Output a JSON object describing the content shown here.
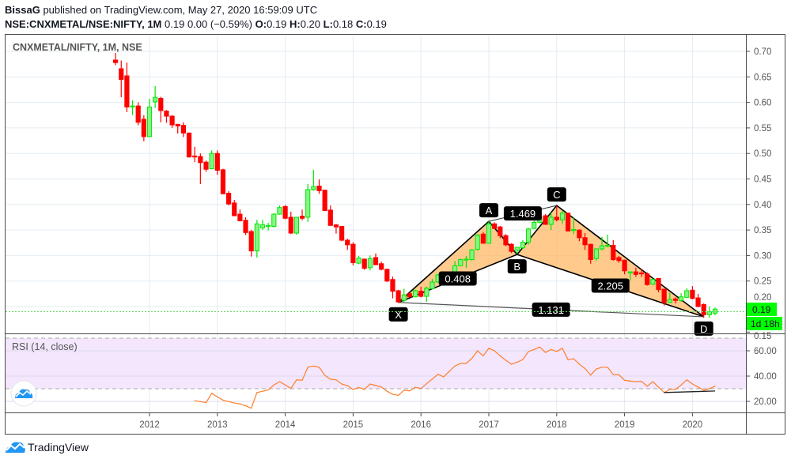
{
  "header": {
    "author": "BissaG",
    "published": "published on TradingView.com, May 27, 2020 16:59:09 UTC",
    "symbol": "NSE:CNXMETAL/NSE:NIFTY, 1M",
    "last": "0.19",
    "change": "0.00 (−0.59%)",
    "o_label": "O:",
    "o": "0.19",
    "h_label": "H:",
    "h": "0.20",
    "l_label": "L:",
    "l": "0.18",
    "c_label": "C:",
    "c": "0.19"
  },
  "pane_title": "CNXMETAL/NIFTY, 1M, NSE",
  "rsi_title": "RSI (14, close)",
  "current_price_label": "0.19",
  "countdown_label": "1d 18h",
  "brand": "TradingView",
  "colors": {
    "up": "#00e600",
    "up_fill": "#86f586",
    "down": "#ff0000",
    "pattern": "#ffb865",
    "rsi": "#ff7f2a",
    "rsi_band": "#f3e6fd",
    "current": "#00ff00"
  },
  "chart_data": [
    {
      "type": "candlestick",
      "title": "CNXMETAL/NIFTY, 1M, NSE",
      "ylim": [
        0.15,
        0.72
      ],
      "y_ticks": [
        "0.70",
        "0.65",
        "0.60",
        "0.55",
        "0.50",
        "0.45",
        "0.40",
        "0.35",
        "0.30",
        "0.25",
        "0.20",
        "0.15"
      ],
      "x_ticks": [
        "2012",
        "2013",
        "2014",
        "2015",
        "2016",
        "2017",
        "2018",
        "2019",
        "2020"
      ],
      "start": "2011-07",
      "ohlc": [
        [
          0.683,
          0.697,
          0.673,
          0.678
        ],
        [
          0.666,
          0.682,
          0.61,
          0.645
        ],
        [
          0.652,
          0.678,
          0.581,
          0.591
        ],
        [
          0.591,
          0.604,
          0.575,
          0.593
        ],
        [
          0.593,
          0.6,
          0.555,
          0.561
        ],
        [
          0.567,
          0.575,
          0.524,
          0.533
        ],
        [
          0.533,
          0.607,
          0.532,
          0.591
        ],
        [
          0.601,
          0.632,
          0.589,
          0.61
        ],
        [
          0.608,
          0.611,
          0.561,
          0.584
        ],
        [
          0.583,
          0.585,
          0.56,
          0.573
        ],
        [
          0.573,
          0.575,
          0.55,
          0.556
        ],
        [
          0.557,
          0.558,
          0.539,
          0.554
        ],
        [
          0.555,
          0.561,
          0.532,
          0.54
        ],
        [
          0.54,
          0.541,
          0.492,
          0.493
        ],
        [
          0.495,
          0.513,
          0.483,
          0.493
        ],
        [
          0.494,
          0.5,
          0.44,
          0.482
        ],
        [
          0.483,
          0.486,
          0.464,
          0.469
        ],
        [
          0.47,
          0.506,
          0.469,
          0.5
        ],
        [
          0.5,
          0.506,
          0.458,
          0.467
        ],
        [
          0.468,
          0.47,
          0.42,
          0.421
        ],
        [
          0.422,
          0.426,
          0.398,
          0.401
        ],
        [
          0.403,
          0.409,
          0.377,
          0.378
        ],
        [
          0.381,
          0.39,
          0.367,
          0.368
        ],
        [
          0.369,
          0.375,
          0.34,
          0.345
        ],
        [
          0.347,
          0.35,
          0.298,
          0.309
        ],
        [
          0.309,
          0.37,
          0.296,
          0.362
        ],
        [
          0.354,
          0.37,
          0.35,
          0.36
        ],
        [
          0.357,
          0.364,
          0.349,
          0.359
        ],
        [
          0.357,
          0.383,
          0.355,
          0.381
        ],
        [
          0.381,
          0.398,
          0.38,
          0.394
        ],
        [
          0.396,
          0.399,
          0.371,
          0.373
        ],
        [
          0.375,
          0.386,
          0.342,
          0.344
        ],
        [
          0.344,
          0.375,
          0.341,
          0.375
        ],
        [
          0.377,
          0.39,
          0.369,
          0.373
        ],
        [
          0.375,
          0.44,
          0.366,
          0.429
        ],
        [
          0.429,
          0.468,
          0.427,
          0.435
        ],
        [
          0.436,
          0.449,
          0.421,
          0.427
        ],
        [
          0.428,
          0.429,
          0.387,
          0.388
        ],
        [
          0.389,
          0.398,
          0.358,
          0.359
        ],
        [
          0.36,
          0.362,
          0.343,
          0.356
        ],
        [
          0.357,
          0.358,
          0.328,
          0.33
        ],
        [
          0.33,
          0.333,
          0.311,
          0.321
        ],
        [
          0.322,
          0.326,
          0.281,
          0.286
        ],
        [
          0.285,
          0.299,
          0.283,
          0.295
        ],
        [
          0.293,
          0.294,
          0.272,
          0.275
        ],
        [
          0.276,
          0.3,
          0.271,
          0.294
        ],
        [
          0.296,
          0.304,
          0.281,
          0.282
        ],
        [
          0.284,
          0.288,
          0.271,
          0.273
        ],
        [
          0.273,
          0.274,
          0.248,
          0.25
        ],
        [
          0.253,
          0.259,
          0.216,
          0.23
        ],
        [
          0.231,
          0.233,
          0.208,
          0.209
        ],
        [
          0.212,
          0.235,
          0.207,
          0.223
        ],
        [
          0.225,
          0.227,
          0.218,
          0.219
        ],
        [
          0.219,
          0.233,
          0.218,
          0.231
        ],
        [
          0.23,
          0.239,
          0.218,
          0.22
        ],
        [
          0.22,
          0.239,
          0.209,
          0.236
        ],
        [
          0.235,
          0.254,
          0.234,
          0.248
        ],
        [
          0.248,
          0.264,
          0.247,
          0.262
        ],
        [
          0.262,
          0.266,
          0.248,
          0.249
        ],
        [
          0.25,
          0.264,
          0.247,
          0.263
        ],
        [
          0.265,
          0.289,
          0.262,
          0.28
        ],
        [
          0.28,
          0.294,
          0.279,
          0.292
        ],
        [
          0.292,
          0.299,
          0.276,
          0.293
        ],
        [
          0.292,
          0.313,
          0.29,
          0.311
        ],
        [
          0.312,
          0.342,
          0.31,
          0.34
        ],
        [
          0.342,
          0.346,
          0.323,
          0.324
        ],
        [
          0.324,
          0.368,
          0.323,
          0.362
        ],
        [
          0.362,
          0.365,
          0.352,
          0.353
        ],
        [
          0.356,
          0.358,
          0.334,
          0.339
        ],
        [
          0.339,
          0.342,
          0.318,
          0.321
        ],
        [
          0.322,
          0.324,
          0.305,
          0.308
        ],
        [
          0.31,
          0.317,
          0.303,
          0.316
        ],
        [
          0.315,
          0.33,
          0.313,
          0.326
        ],
        [
          0.326,
          0.354,
          0.321,
          0.352
        ],
        [
          0.353,
          0.368,
          0.352,
          0.365
        ],
        [
          0.365,
          0.386,
          0.363,
          0.376
        ],
        [
          0.378,
          0.381,
          0.36,
          0.361
        ],
        [
          0.361,
          0.384,
          0.35,
          0.375
        ],
        [
          0.375,
          0.398,
          0.367,
          0.37
        ],
        [
          0.37,
          0.388,
          0.362,
          0.383
        ],
        [
          0.383,
          0.384,
          0.348,
          0.348
        ],
        [
          0.349,
          0.375,
          0.342,
          0.351
        ],
        [
          0.35,
          0.351,
          0.328,
          0.335
        ],
        [
          0.335,
          0.344,
          0.311,
          0.321
        ],
        [
          0.322,
          0.323,
          0.284,
          0.292
        ],
        [
          0.294,
          0.314,
          0.29,
          0.313
        ],
        [
          0.313,
          0.337,
          0.31,
          0.319
        ],
        [
          0.319,
          0.341,
          0.316,
          0.32
        ],
        [
          0.32,
          0.33,
          0.29,
          0.292
        ],
        [
          0.296,
          0.299,
          0.286,
          0.29
        ],
        [
          0.291,
          0.292,
          0.263,
          0.27
        ],
        [
          0.266,
          0.269,
          0.251,
          0.268
        ],
        [
          0.268,
          0.276,
          0.258,
          0.263
        ],
        [
          0.266,
          0.274,
          0.258,
          0.264
        ],
        [
          0.264,
          0.267,
          0.241,
          0.243
        ],
        [
          0.244,
          0.255,
          0.242,
          0.253
        ],
        [
          0.255,
          0.256,
          0.228,
          0.233
        ],
        [
          0.234,
          0.235,
          0.202,
          0.208
        ],
        [
          0.208,
          0.227,
          0.207,
          0.214
        ],
        [
          0.215,
          0.218,
          0.206,
          0.212
        ],
        [
          0.212,
          0.226,
          0.209,
          0.219
        ],
        [
          0.218,
          0.236,
          0.217,
          0.231
        ],
        [
          0.232,
          0.24,
          0.214,
          0.216
        ],
        [
          0.217,
          0.225,
          0.199,
          0.2
        ],
        [
          0.204,
          0.206,
          0.178,
          0.184
        ],
        [
          0.184,
          0.2,
          0.178,
          0.19
        ],
        [
          0.187,
          0.198,
          0.183,
          0.195
        ]
      ],
      "current_price": 0.19,
      "harmonic_pattern": {
        "points": [
          {
            "label": "X",
            "date": "2015-09",
            "price": 0.208,
            "pos": "below"
          },
          {
            "label": "A",
            "date": "2017-01",
            "price": 0.367,
            "pos": "above"
          },
          {
            "label": "B",
            "date": "2017-06",
            "price": 0.302,
            "pos": "below"
          },
          {
            "label": "C",
            "date": "2018-01",
            "price": 0.398,
            "pos": "above"
          },
          {
            "label": "D",
            "date": "2020-03",
            "price": 0.18,
            "pos": "below"
          }
        ],
        "ratios": [
          {
            "from": "X",
            "to": "B",
            "value": "0.408"
          },
          {
            "from": "A",
            "to": "C",
            "value": "1.469"
          },
          {
            "from": "B",
            "to": "D",
            "value": "2.205"
          },
          {
            "from": "X",
            "to": "D",
            "value": "1.131"
          }
        ]
      }
    },
    {
      "type": "line",
      "title": "RSI (14, close)",
      "ylim": [
        10,
        80
      ],
      "y_ticks": [
        "60.00",
        "40.00",
        "20.00"
      ],
      "bands": [
        30,
        70
      ],
      "start": "2012-09",
      "values": [
        20.6,
        19.8,
        19,
        26.4,
        23.5,
        21,
        19.8,
        18.7,
        18,
        16.5,
        14.6,
        27,
        28,
        29,
        33,
        35.6,
        33,
        30.2,
        37,
        36.7,
        47,
        48,
        47,
        40.6,
        37.5,
        37,
        33.7,
        32.5,
        29.4,
        31,
        29.4,
        33.7,
        32.5,
        31.4,
        28,
        25.6,
        24.8,
        28.8,
        28.3,
        31.2,
        30.2,
        34,
        37.7,
        41.4,
        39.4,
        43.7,
        48,
        50,
        50,
        54,
        60,
        56,
        62,
        60,
        56,
        52.5,
        49.4,
        51,
        53,
        59.4,
        61,
        63,
        58.7,
        61,
        59.5,
        62,
        53,
        53.7,
        49.4,
        46,
        40.8,
        45.6,
        47,
        47,
        41.2,
        41,
        36.7,
        36,
        35.6,
        35.8,
        32,
        35.6,
        31.3,
        27,
        29.4,
        29.4,
        33,
        37,
        33.8,
        31.3,
        28.8,
        30,
        32
      ],
      "divergence_line": {
        "from": {
          "date": "2019-08",
          "value": 27
        },
        "to": {
          "date": "2020-05",
          "value": 28.2
        }
      }
    }
  ]
}
